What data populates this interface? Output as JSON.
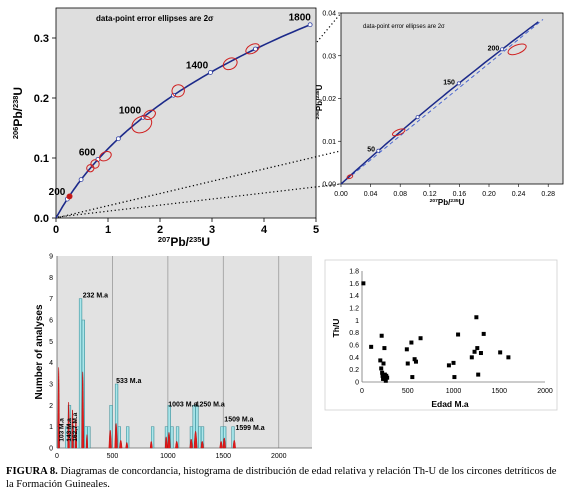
{
  "caption": {
    "label": "FIGURA 8.",
    "text": "Diagramas de concordancia, histograma de distribución de edad relativa y relación Th-U de los circones detríticos de la Formación Guineales."
  },
  "chart_data": [
    {
      "type": "line",
      "title": "data-point error ellipses are 2σ",
      "xlabel": "207Pb/235U",
      "ylabel": "206Pb/238U",
      "xlim": [
        0,
        5
      ],
      "ylim": [
        0,
        0.35
      ],
      "x_ticks": [
        "0",
        "1",
        "2",
        "3",
        "4",
        "5"
      ],
      "y_ticks": [
        "0.0",
        "0.1",
        "0.2",
        "0.3"
      ],
      "concordia_labels": [
        {
          "text": "200",
          "x": 0.218,
          "y": 0.0315
        },
        {
          "text": "600",
          "x": 0.799,
          "y": 0.0976
        },
        {
          "text": "1000",
          "x": 1.675,
          "y": 0.1678
        },
        {
          "text": "1400",
          "x": 2.965,
          "y": 0.2425
        },
        {
          "text": "1800",
          "x": 4.94,
          "y": 0.3223
        }
      ],
      "ellipses": [
        {
          "x": 0.26,
          "y": 0.036,
          "rx": 0.05,
          "ry": 0.004
        },
        {
          "x": 0.66,
          "y": 0.083,
          "rx": 0.07,
          "ry": 0.006
        },
        {
          "x": 0.75,
          "y": 0.09,
          "rx": 0.08,
          "ry": 0.007
        },
        {
          "x": 0.95,
          "y": 0.103,
          "rx": 0.12,
          "ry": 0.007
        },
        {
          "x": 1.65,
          "y": 0.156,
          "rx": 0.2,
          "ry": 0.013
        },
        {
          "x": 1.8,
          "y": 0.172,
          "rx": 0.12,
          "ry": 0.007
        },
        {
          "x": 2.35,
          "y": 0.212,
          "rx": 0.12,
          "ry": 0.01
        },
        {
          "x": 3.35,
          "y": 0.257,
          "rx": 0.14,
          "ry": 0.009
        },
        {
          "x": 3.78,
          "y": 0.282,
          "rx": 0.14,
          "ry": 0.007
        }
      ]
    },
    {
      "type": "line",
      "title": "data-point error ellipses are 2σ",
      "xlabel": "207Pb/235U",
      "ylabel": "206Pb/238U",
      "xlim": [
        0,
        0.3
      ],
      "ylim": [
        0,
        0.04
      ],
      "x_ticks": [
        "0.00",
        "0.04",
        "0.08",
        "0.12",
        "0.16",
        "0.20",
        "0.24",
        "0.28"
      ],
      "y_ticks": [
        "0.00",
        "0.01",
        "0.02",
        "0.03",
        "0.04"
      ],
      "concordia_labels": [
        {
          "text": "50",
          "x": 0.05,
          "y": 0.0078
        },
        {
          "text": "150",
          "x": 0.158,
          "y": 0.0235
        },
        {
          "text": "200",
          "x": 0.218,
          "y": 0.0315
        }
      ],
      "ellipses": [
        {
          "x": 0.012,
          "y": 0.0017,
          "rx": 0.004,
          "ry": 0.0004
        },
        {
          "x": 0.078,
          "y": 0.0121,
          "rx": 0.009,
          "ry": 0.0006
        },
        {
          "x": 0.238,
          "y": 0.0315,
          "rx": 0.013,
          "ry": 0.001
        }
      ]
    },
    {
      "type": "bar",
      "ylabel": "Number of analyses",
      "xlim": [
        0,
        2300
      ],
      "ylim": [
        0,
        9
      ],
      "x_ticks": [
        "0",
        "500",
        "1000",
        "1500",
        "2000"
      ],
      "y_ticks": [
        "0",
        "1",
        "2",
        "3",
        "4",
        "5",
        "6",
        "7",
        "8",
        "9"
      ],
      "bin_width": 25,
      "bins": [
        {
          "x": 0,
          "value": 1
        },
        {
          "x": 75,
          "value": 1
        },
        {
          "x": 100,
          "value": 2
        },
        {
          "x": 125,
          "value": 1
        },
        {
          "x": 150,
          "value": 1
        },
        {
          "x": 175,
          "value": 1
        },
        {
          "x": 200,
          "value": 7
        },
        {
          "x": 225,
          "value": 6
        },
        {
          "x": 250,
          "value": 1
        },
        {
          "x": 275,
          "value": 1
        },
        {
          "x": 475,
          "value": 2
        },
        {
          "x": 525,
          "value": 3
        },
        {
          "x": 550,
          "value": 1
        },
        {
          "x": 625,
          "value": 1
        },
        {
          "x": 850,
          "value": 1
        },
        {
          "x": 975,
          "value": 1
        },
        {
          "x": 1000,
          "value": 2
        },
        {
          "x": 1025,
          "value": 1
        },
        {
          "x": 1075,
          "value": 1
        },
        {
          "x": 1200,
          "value": 1
        },
        {
          "x": 1225,
          "value": 2
        },
        {
          "x": 1250,
          "value": 2
        },
        {
          "x": 1275,
          "value": 1
        },
        {
          "x": 1300,
          "value": 1
        },
        {
          "x": 1475,
          "value": 1
        },
        {
          "x": 1500,
          "value": 1
        },
        {
          "x": 1575,
          "value": 1
        }
      ],
      "peaks": [
        {
          "x": 15,
          "h": 7.2,
          "w": 8
        },
        {
          "x": 105,
          "h": 4.1,
          "w": 8
        },
        {
          "x": 140,
          "h": 3.4,
          "w": 8
        },
        {
          "x": 170,
          "h": 2.6,
          "w": 8
        },
        {
          "x": 232,
          "h": 6.8,
          "w": 10
        },
        {
          "x": 270,
          "h": 1.2,
          "w": 8
        },
        {
          "x": 480,
          "h": 1.6,
          "w": 12
        },
        {
          "x": 533,
          "h": 2.2,
          "w": 12
        },
        {
          "x": 575,
          "h": 0.7,
          "w": 12
        },
        {
          "x": 630,
          "h": 0.5,
          "w": 10
        },
        {
          "x": 850,
          "h": 0.6,
          "w": 10
        },
        {
          "x": 985,
          "h": 1.0,
          "w": 10
        },
        {
          "x": 1010,
          "h": 1.4,
          "w": 12
        },
        {
          "x": 1080,
          "h": 0.6,
          "w": 12
        },
        {
          "x": 1210,
          "h": 0.8,
          "w": 12
        },
        {
          "x": 1250,
          "h": 1.5,
          "w": 14
        },
        {
          "x": 1310,
          "h": 0.6,
          "w": 12
        },
        {
          "x": 1480,
          "h": 0.6,
          "w": 12
        },
        {
          "x": 1509,
          "h": 0.9,
          "w": 12
        },
        {
          "x": 1599,
          "h": 0.7,
          "w": 12
        }
      ],
      "annotations": [
        {
          "text": "232 M.a",
          "x": 232,
          "y": 7.05,
          "rotate": false
        },
        {
          "text": "533 M.a",
          "x": 533,
          "y": 3.05,
          "rotate": false
        },
        {
          "text": "1003 M.a",
          "x": 1003,
          "y": 1.95,
          "rotate": false
        },
        {
          "text": "1250 M.a",
          "x": 1250,
          "y": 1.95,
          "rotate": false
        },
        {
          "text": "1509 M.a",
          "x": 1509,
          "y": 1.25,
          "rotate": false
        },
        {
          "text": "1599 M.a",
          "x": 1610,
          "y": 0.85,
          "rotate": false
        },
        {
          "text": "103 M.a",
          "x": 60,
          "y": 0.3,
          "rotate": true
        },
        {
          "text": "143 M.a",
          "x": 125,
          "y": 0.3,
          "rotate": true
        },
        {
          "text": "162,7 M.a",
          "x": 180,
          "y": 0.3,
          "rotate": true
        }
      ]
    },
    {
      "type": "scatter",
      "xlabel": "Edad M.a",
      "ylabel": "Th/U",
      "xlim": [
        0,
        2000
      ],
      "ylim": [
        0,
        1.8
      ],
      "x_ticks": [
        "0",
        "500",
        "1000",
        "1500",
        "2000"
      ],
      "y_ticks": [
        "0",
        "0.2",
        "0.4",
        "0.6",
        "0.8",
        "1",
        "1.2",
        "1.4",
        "1.6",
        "1.8"
      ],
      "points": [
        [
          15,
          1.6
        ],
        [
          100,
          0.57
        ],
        [
          200,
          0.35
        ],
        [
          210,
          0.22
        ],
        [
          215,
          0.75
        ],
        [
          220,
          0.15
        ],
        [
          225,
          0.1
        ],
        [
          230,
          0.05
        ],
        [
          235,
          0.3
        ],
        [
          240,
          0.08
        ],
        [
          245,
          0.55
        ],
        [
          250,
          0.12
        ],
        [
          255,
          0.05
        ],
        [
          260,
          0.02
        ],
        [
          265,
          0.1
        ],
        [
          275,
          0.07
        ],
        [
          490,
          0.53
        ],
        [
          500,
          0.3
        ],
        [
          540,
          0.64
        ],
        [
          550,
          0.08
        ],
        [
          575,
          0.37
        ],
        [
          590,
          0.33
        ],
        [
          640,
          0.71
        ],
        [
          950,
          0.27
        ],
        [
          1000,
          0.31
        ],
        [
          1010,
          0.08
        ],
        [
          1050,
          0.77
        ],
        [
          1200,
          0.4
        ],
        [
          1230,
          0.49
        ],
        [
          1250,
          1.05
        ],
        [
          1260,
          0.55
        ],
        [
          1270,
          0.12
        ],
        [
          1300,
          0.47
        ],
        [
          1330,
          0.78
        ],
        [
          1510,
          0.48
        ],
        [
          1600,
          0.4
        ]
      ]
    }
  ]
}
